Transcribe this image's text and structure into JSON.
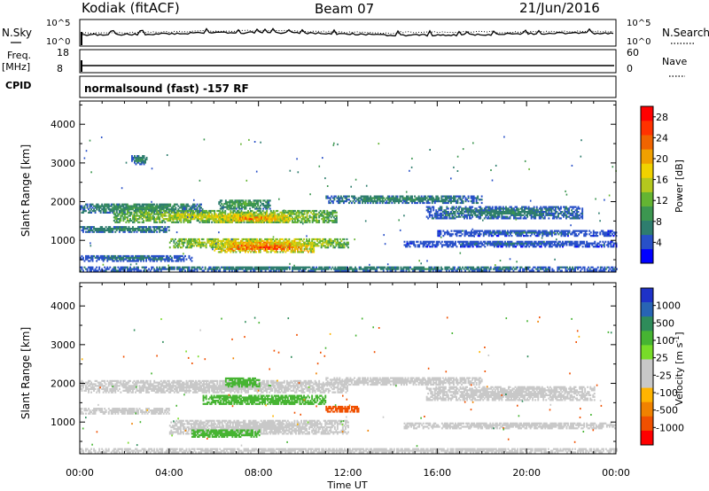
{
  "header": {
    "station": "Kodiak (fitACF)",
    "beam": "Beam 07",
    "date": "21/Jun/2016"
  },
  "noise_panel": {
    "left_label": "N.Sky",
    "right_label": "N.Search",
    "left_ticks": [
      "10^5",
      "10^0"
    ],
    "right_ticks": [
      "10^5",
      "10^0"
    ],
    "left_line_style": "solid",
    "right_line_style": "dotted"
  },
  "freq_panel": {
    "left_label_1": "Freq.",
    "left_label_2": "[MHz]",
    "right_label": "Nave",
    "left_ticks": [
      "18",
      "8"
    ],
    "right_ticks": [
      "60",
      "0"
    ],
    "left_line_style": "solid",
    "right_line_style": "dotted"
  },
  "cpid_panel": {
    "label": "CPID",
    "text": "normalsound (fast) -157 RF"
  },
  "chart_data": [
    {
      "type": "heatmap",
      "name": "power",
      "ylabel": "Slant Range [km]",
      "xlabel": "",
      "x_ticks": [
        "00:00",
        "04:00",
        "08:00",
        "12:00",
        "16:00",
        "20:00",
        "00:00"
      ],
      "x_range_hours": [
        0,
        24
      ],
      "y_ticks": [
        1000,
        2000,
        3000,
        4000
      ],
      "ylim": [
        180,
        4600
      ],
      "colorbar_label": "Power [dB]",
      "colorbar_ticks": [
        "4",
        "8",
        "12",
        "16",
        "20",
        "24",
        "28"
      ],
      "colorbar_range": [
        0,
        30
      ],
      "colorbar_colors": [
        "#0000ff",
        "#2850c8",
        "#2e7d6e",
        "#3c9650",
        "#64b432",
        "#b4c81e",
        "#f0d200",
        "#f0a000",
        "#f06400",
        "#ff3200",
        "#ff0000"
      ],
      "grid": false,
      "features": [
        {
          "t": [
            0.0,
            5.5
          ],
          "r": [
            1700,
            1950
          ],
          "value": 10
        },
        {
          "t": [
            1.5,
            11.5
          ],
          "r": [
            1450,
            1750
          ],
          "value": 18
        },
        {
          "t": [
            6.0,
            9.5
          ],
          "r": [
            1450,
            1650
          ],
          "value": 24
        },
        {
          "t": [
            6.2,
            8.5
          ],
          "r": [
            1800,
            2050
          ],
          "value": 12
        },
        {
          "t": [
            11.0,
            18.0
          ],
          "r": [
            1950,
            2150
          ],
          "value": 9
        },
        {
          "t": [
            15.5,
            22.5
          ],
          "r": [
            1550,
            1850
          ],
          "value": 8
        },
        {
          "t": [
            0.0,
            4.0
          ],
          "r": [
            1200,
            1350
          ],
          "value": 9
        },
        {
          "t": [
            4.0,
            12.0
          ],
          "r": [
            800,
            1050
          ],
          "value": 20
        },
        {
          "t": [
            6.0,
            10.5
          ],
          "r": [
            680,
            930
          ],
          "value": 27
        },
        {
          "t": [
            0.0,
            5.0
          ],
          "r": [
            450,
            600
          ],
          "value": 7
        },
        {
          "t": [
            14.5,
            24.0
          ],
          "r": [
            820,
            980
          ],
          "value": 6
        },
        {
          "t": [
            16.0,
            24.0
          ],
          "r": [
            1100,
            1250
          ],
          "value": 6
        },
        {
          "t": [
            2.3,
            3.0
          ],
          "r": [
            2950,
            3200
          ],
          "value": 9
        },
        {
          "t": [
            0.0,
            24.0
          ],
          "r": [
            200,
            320
          ],
          "value": 8
        }
      ]
    },
    {
      "type": "heatmap",
      "name": "velocity",
      "ylabel": "Slant Range [km]",
      "xlabel": "Time UT",
      "x_ticks": [
        "00:00",
        "04:00",
        "08:00",
        "12:00",
        "16:00",
        "20:00",
        "00:00"
      ],
      "x_range_hours": [
        0,
        24
      ],
      "y_ticks": [
        1000,
        2000,
        3000,
        4000
      ],
      "ylim": [
        180,
        4600
      ],
      "colorbar_label": "Velocity [m s^-1]",
      "colorbar_ticks": [
        "1000",
        "500",
        "100",
        "25",
        "-25",
        "-100",
        "-500",
        "-1000"
      ],
      "colorbar_colors": [
        "#1e32c8",
        "#2864b4",
        "#2e8c5a",
        "#46b432",
        "#78dc28",
        "#c8c8c8",
        "#c8c8c8",
        "#ffb400",
        "#f08200",
        "#f05000",
        "#ff0000"
      ],
      "grid": false,
      "features": [
        {
          "t": [
            0.0,
            12.0
          ],
          "r": [
            1750,
            2050
          ],
          "value": 0
        },
        {
          "t": [
            11.0,
            18.0
          ],
          "r": [
            1950,
            2150
          ],
          "value": 0
        },
        {
          "t": [
            15.5,
            23.0
          ],
          "r": [
            1550,
            1900
          ],
          "value": 0
        },
        {
          "t": [
            5.5,
            11.0
          ],
          "r": [
            1450,
            1700
          ],
          "value": 150
        },
        {
          "t": [
            6.5,
            8.0
          ],
          "r": [
            1900,
            2150
          ],
          "value": 200
        },
        {
          "t": [
            0.0,
            4.0
          ],
          "r": [
            1200,
            1350
          ],
          "value": 0
        },
        {
          "t": [
            11.0,
            12.5
          ],
          "r": [
            1250,
            1400
          ],
          "value": -300
        },
        {
          "t": [
            4.0,
            12.0
          ],
          "r": [
            680,
            1050
          ],
          "value": 0
        },
        {
          "t": [
            5.0,
            8.0
          ],
          "r": [
            600,
            800
          ],
          "value": 150
        },
        {
          "t": [
            14.5,
            24.0
          ],
          "r": [
            820,
            980
          ],
          "value": 0
        },
        {
          "t": [
            0.0,
            24.0
          ],
          "r": [
            200,
            320
          ],
          "value": 0
        }
      ]
    }
  ]
}
